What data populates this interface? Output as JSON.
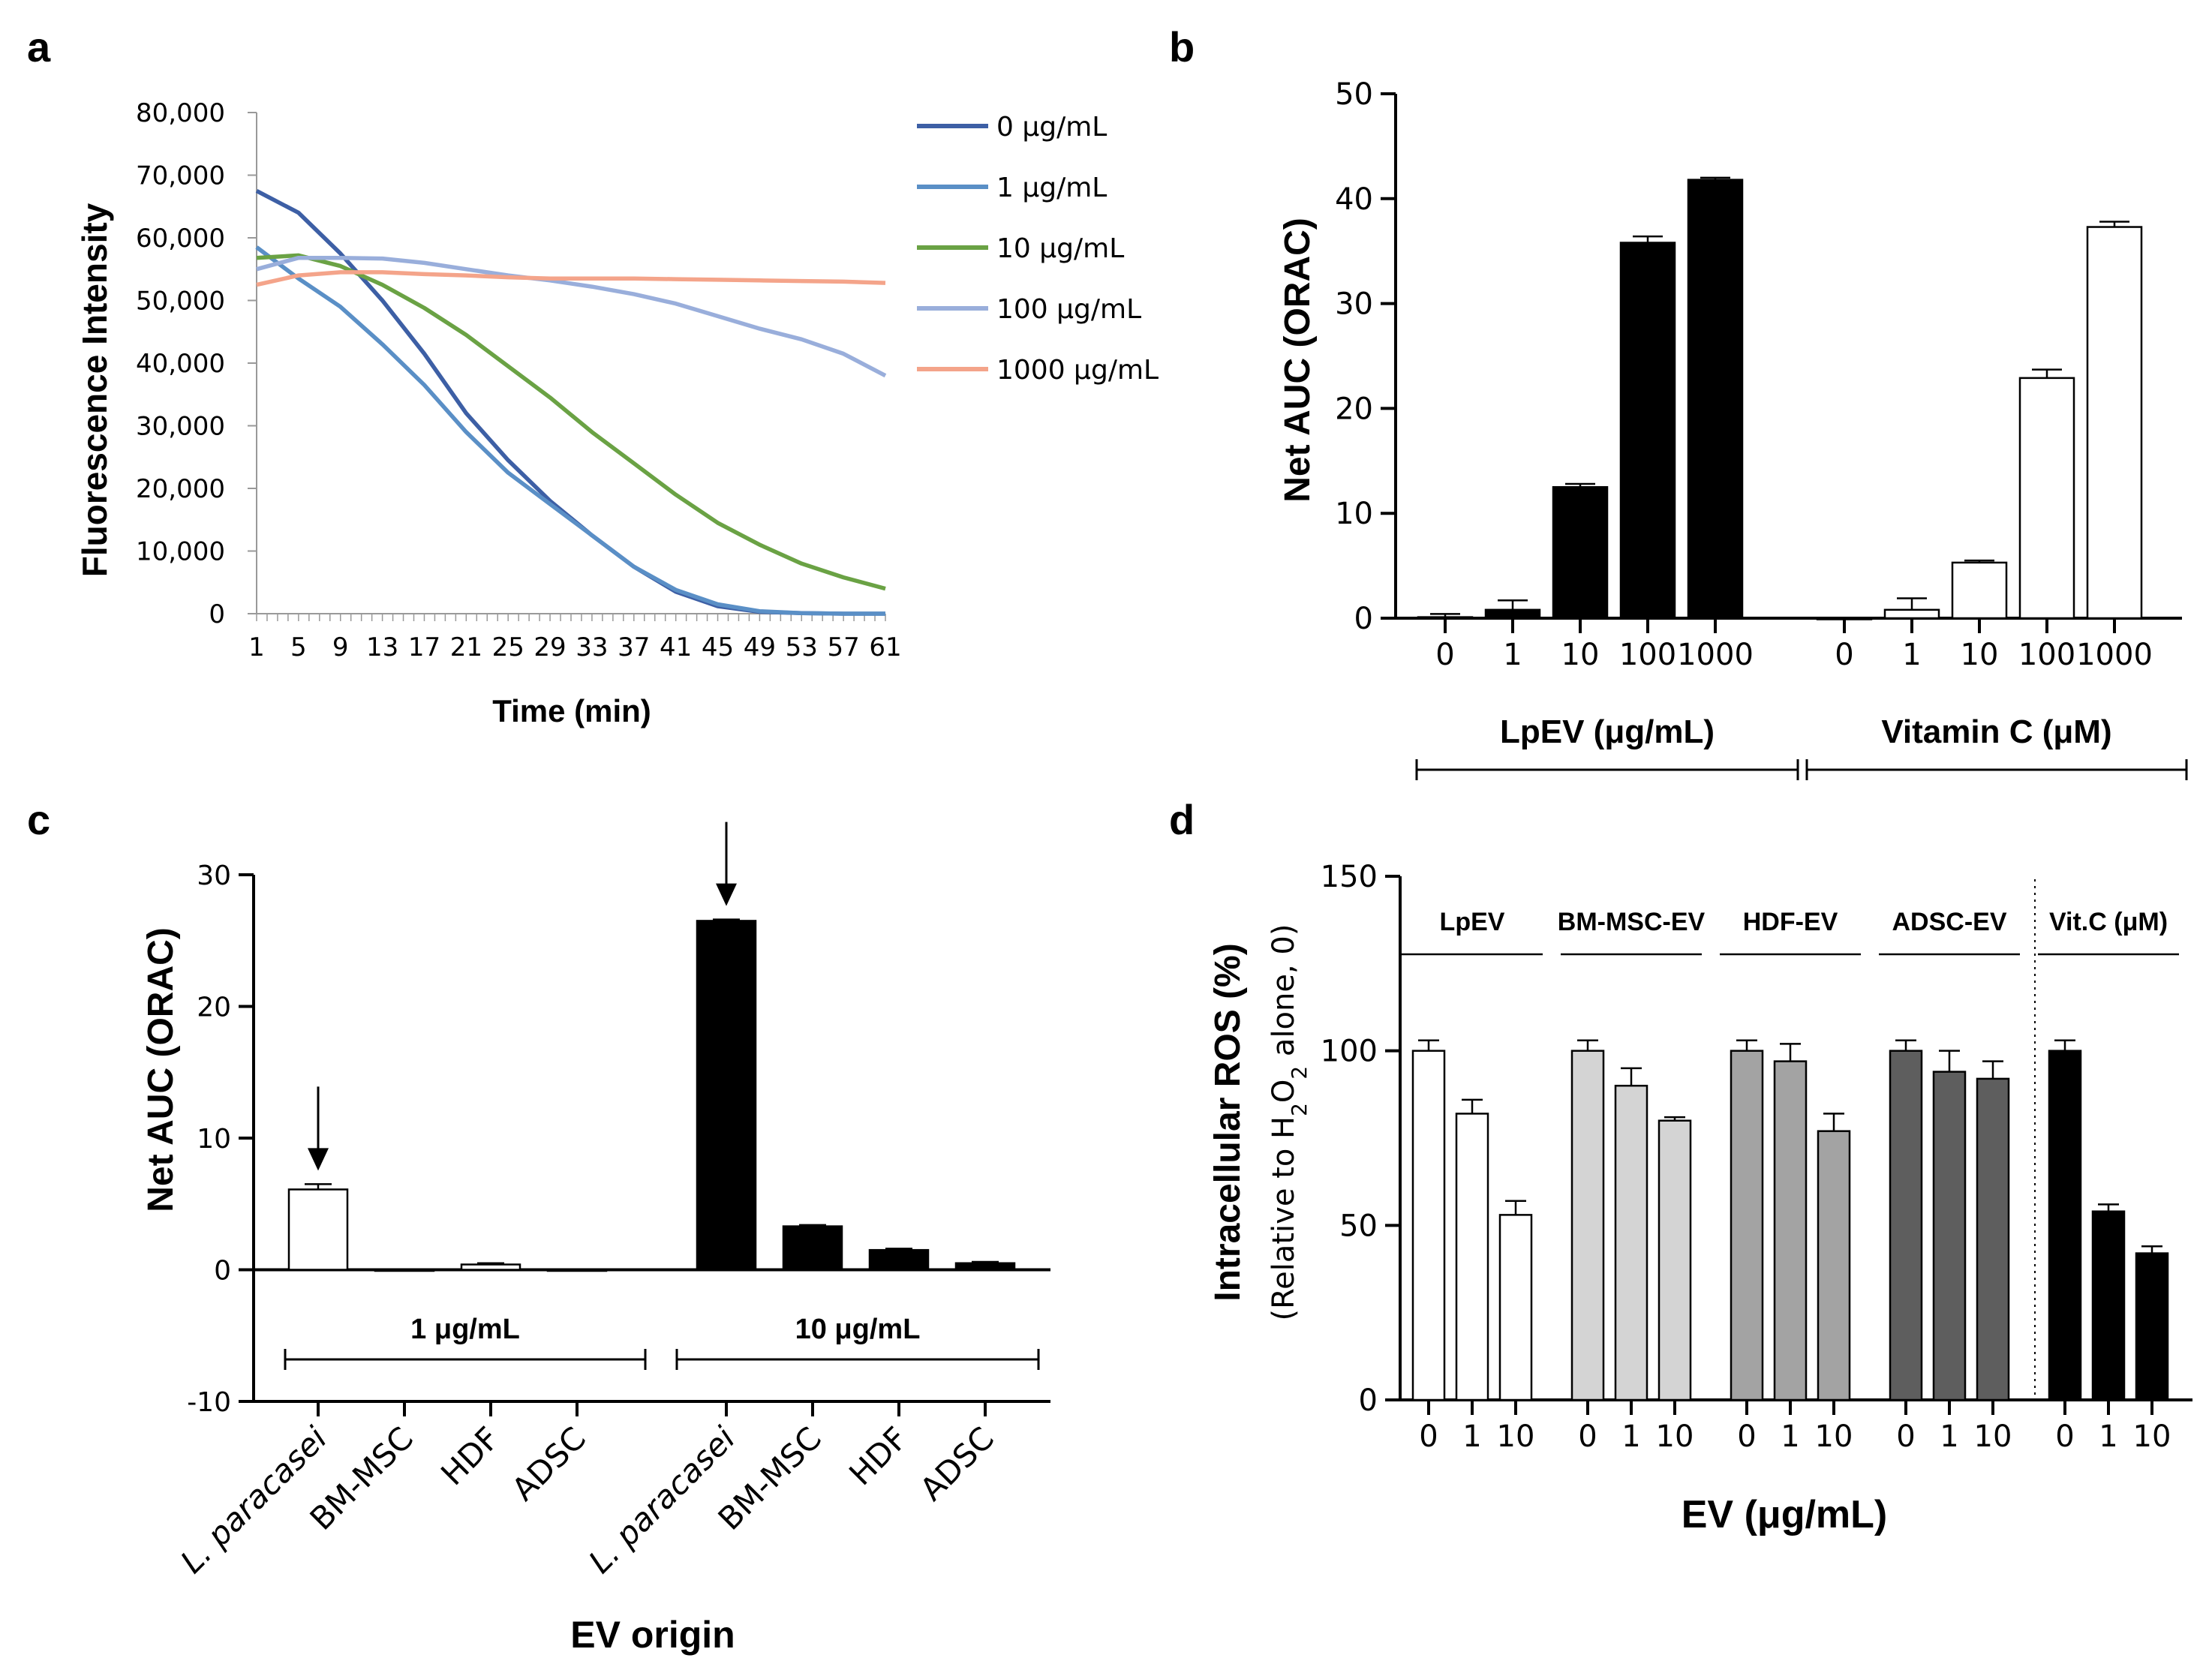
{
  "chart_data": [
    {
      "panel": "a",
      "type": "line",
      "xlabel": "Time (min)",
      "ylabel": "Fluorescence Intensity",
      "xlim": [
        1,
        61
      ],
      "ylim": [
        0,
        80000
      ],
      "x_ticks": [
        1,
        5,
        9,
        13,
        17,
        21,
        25,
        29,
        33,
        37,
        41,
        45,
        49,
        53,
        57,
        61
      ],
      "y_ticks": [
        0,
        10000,
        20000,
        30000,
        40000,
        50000,
        60000,
        70000,
        80000
      ],
      "y_tick_labels": [
        "0",
        "10,000",
        "20,000",
        "30,000",
        "40,000",
        "50,000",
        "60,000",
        "70,000",
        "80,000"
      ],
      "x": [
        1,
        5,
        9,
        13,
        17,
        21,
        25,
        29,
        33,
        37,
        41,
        45,
        49,
        53,
        57,
        61
      ],
      "legend_position": "right",
      "series": [
        {
          "name": "0 μg/mL",
          "color": "#3d5fa5",
          "values": [
            67500,
            64000,
            57500,
            50000,
            41500,
            32000,
            24500,
            18000,
            12500,
            7500,
            3500,
            1200,
            300,
            100,
            0,
            0
          ]
        },
        {
          "name": "1 μg/mL",
          "color": "#5a8fc6",
          "values": [
            58500,
            53500,
            49000,
            43000,
            36500,
            29000,
            22500,
            17500,
            12500,
            7500,
            3800,
            1500,
            400,
            100,
            0,
            0
          ]
        },
        {
          "name": "10 μg/mL",
          "color": "#6aa244",
          "values": [
            56800,
            57200,
            55500,
            52500,
            48800,
            44500,
            39500,
            34500,
            29000,
            24000,
            19000,
            14500,
            11000,
            8000,
            5800,
            4000
          ]
        },
        {
          "name": "100 μg/mL",
          "color": "#99aedb",
          "values": [
            55000,
            56800,
            56800,
            56700,
            56000,
            55000,
            54000,
            53200,
            52200,
            51000,
            49500,
            47500,
            45500,
            43800,
            41500,
            38000
          ]
        },
        {
          "name": "1000 μg/mL",
          "color": "#f4a48a",
          "values": [
            52500,
            54000,
            54500,
            54500,
            54200,
            54000,
            53700,
            53500,
            53500,
            53500,
            53400,
            53300,
            53200,
            53100,
            53000,
            52800
          ]
        }
      ]
    },
    {
      "panel": "b",
      "type": "bar",
      "ylabel": "Net AUC (ORAC)",
      "ylim": [
        0,
        50
      ],
      "y_ticks": [
        0,
        10,
        20,
        30,
        40,
        50
      ],
      "groups": [
        {
          "label": "LpEV (μg/mL)",
          "fill": "black",
          "categories": [
            "0",
            "1",
            "10",
            "100",
            "1000"
          ],
          "values": [
            0.1,
            0.8,
            12.5,
            35.8,
            41.8
          ],
          "errors": [
            0.3,
            0.9,
            0.3,
            0.6,
            0.2
          ]
        },
        {
          "label": "Vitamin C (μM)",
          "fill": "white",
          "categories": [
            "0",
            "1",
            "10",
            "100",
            "1000"
          ],
          "values": [
            0,
            0.8,
            5.3,
            22.9,
            37.3
          ],
          "errors": [
            0,
            1.1,
            0.2,
            0.8,
            0.5
          ]
        }
      ]
    },
    {
      "panel": "c",
      "type": "bar",
      "xlabel": "EV origin",
      "ylabel": "Net AUC (ORAC)",
      "ylim": [
        -10,
        30
      ],
      "y_ticks": [
        -10,
        0,
        10,
        20,
        30
      ],
      "groups": [
        {
          "label": "1 μg/mL",
          "fill": "white",
          "categories": [
            "L. paracasei",
            "BM-MSC",
            "HDF",
            "ADSC"
          ],
          "values": [
            6.1,
            0,
            0.4,
            0
          ],
          "errors": [
            0.4,
            0,
            0.1,
            0
          ],
          "arrow_on": "L. paracasei"
        },
        {
          "label": "10 μg/mL",
          "fill": "black",
          "categories": [
            "L. paracasei",
            "BM-MSC",
            "HDF",
            "ADSC"
          ],
          "values": [
            26.5,
            3.3,
            1.5,
            0.5
          ],
          "errors": [
            0.1,
            0.1,
            0.1,
            0.1
          ],
          "arrow_on": "L. paracasei"
        }
      ]
    },
    {
      "panel": "d",
      "type": "bar",
      "xlabel": "EV (μg/mL)",
      "ylabel": "Intracellular ROS (%)",
      "ylabel_sub": "(Relative to H2O2 alone, 0)",
      "ylim": [
        0,
        150
      ],
      "y_ticks": [
        0,
        50,
        100,
        150
      ],
      "groups": [
        {
          "label": "LpEV",
          "fill": "#ffffff",
          "categories": [
            "0",
            "1",
            "10"
          ],
          "values": [
            100,
            82,
            53
          ],
          "errors": [
            3,
            4,
            4
          ]
        },
        {
          "label": "BM-MSC-EV",
          "fill": "#d4d4d4",
          "categories": [
            "0",
            "1",
            "10"
          ],
          "values": [
            100,
            90,
            80
          ],
          "errors": [
            3,
            5,
            1
          ]
        },
        {
          "label": "HDF-EV",
          "fill": "#a3a3a3",
          "categories": [
            "0",
            "1",
            "10"
          ],
          "values": [
            100,
            97,
            77
          ],
          "errors": [
            3,
            5,
            5
          ]
        },
        {
          "label": "ADSC-EV",
          "fill": "#5e5e5e",
          "categories": [
            "0",
            "1",
            "10"
          ],
          "values": [
            100,
            94,
            92
          ],
          "errors": [
            3,
            6,
            5
          ]
        },
        {
          "label": "Vit.C (μM)",
          "fill": "#000000",
          "categories": [
            "0",
            "1",
            "10"
          ],
          "values": [
            100,
            54,
            42
          ],
          "errors": [
            3,
            2,
            2
          ]
        }
      ]
    }
  ]
}
